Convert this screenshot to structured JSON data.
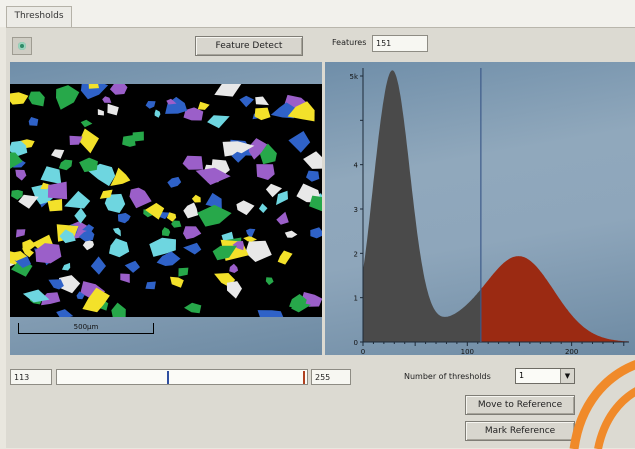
{
  "tabs": [
    {
      "label": "Thresholds"
    }
  ],
  "toolbar": {
    "feature_detect_label": "Feature Detect",
    "features_label": "Features",
    "features_count": "151"
  },
  "image": {
    "scale_label": "500μm"
  },
  "histogram": {
    "y_ticks": [
      "5k",
      "",
      "4",
      "3",
      "2",
      "1",
      "0"
    ],
    "x_ticks": [
      "0",
      "100",
      "200"
    ],
    "threshold_value": 113,
    "colors": {
      "below": "#4a4a4a",
      "above": "#9b2a12",
      "marker": "#3d5a8a"
    }
  },
  "threshold": {
    "low_value": "113",
    "high_value": "255",
    "number_label": "Number of thresholds",
    "number_value": "1"
  },
  "buttons": {
    "move_to_reference": "Move to Reference",
    "mark_reference": "Mark Reference"
  }
}
